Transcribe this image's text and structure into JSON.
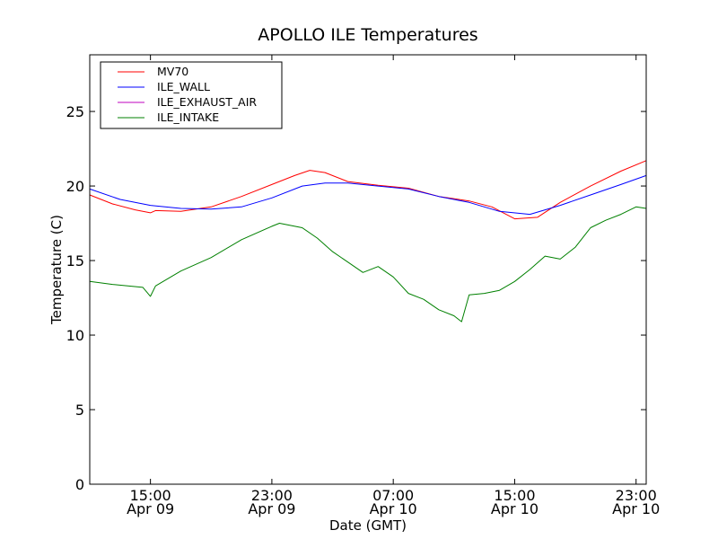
{
  "chart_data": {
    "type": "line",
    "title": "APOLLO ILE Temperatures",
    "xlabel": "Date (GMT)",
    "ylabel": "Temperature (C)",
    "ylim": [
      0,
      28.8
    ],
    "xlim": [
      "2014-04-09 11:00",
      "2014-04-10 23:40"
    ],
    "y_ticks": [
      0,
      5,
      10,
      15,
      20,
      25
    ],
    "x_ticks": [
      {
        "at": "2014-04-09 15:00",
        "time": "15:00",
        "date": "Apr 09"
      },
      {
        "at": "2014-04-09 23:00",
        "time": "23:00",
        "date": "Apr 09"
      },
      {
        "at": "2014-04-10 07:00",
        "time": "07:00",
        "date": "Apr 10"
      },
      {
        "at": "2014-04-10 15:00",
        "time": "15:00",
        "date": "Apr 10"
      },
      {
        "at": "2014-04-10 23:00",
        "time": "23:00",
        "date": "Apr 10"
      }
    ],
    "grid": false,
    "legend": "top-left",
    "series": [
      {
        "name": "MV70",
        "color": "#ff0000",
        "x": [
          "2014-04-09 11:00",
          "2014-04-09 12:30",
          "2014-04-09 14:00",
          "2014-04-09 15:00",
          "2014-04-09 15:20",
          "2014-04-09 17:00",
          "2014-04-09 19:00",
          "2014-04-09 21:00",
          "2014-04-09 23:00",
          "2014-04-10 00:30",
          "2014-04-10 01:30",
          "2014-04-10 02:30",
          "2014-04-10 04:00",
          "2014-04-10 06:00",
          "2014-04-10 08:00",
          "2014-04-10 10:00",
          "2014-04-10 12:00",
          "2014-04-10 13:30",
          "2014-04-10 15:00",
          "2014-04-10 16:30",
          "2014-04-10 18:00",
          "2014-04-10 20:00",
          "2014-04-10 22:00",
          "2014-04-10 23:40"
        ],
        "y": [
          19.4,
          18.8,
          18.4,
          18.2,
          18.35,
          18.3,
          18.6,
          19.3,
          20.1,
          20.7,
          21.05,
          20.9,
          20.3,
          20.05,
          19.85,
          19.3,
          19.0,
          18.6,
          17.8,
          17.9,
          18.9,
          20.0,
          21.0,
          21.7
        ]
      },
      {
        "name": "ILE_WALL",
        "color": "#0000ff",
        "x": [
          "2014-04-09 11:00",
          "2014-04-09 13:00",
          "2014-04-09 15:00",
          "2014-04-09 17:00",
          "2014-04-09 19:00",
          "2014-04-09 21:00",
          "2014-04-09 23:00",
          "2014-04-10 01:00",
          "2014-04-10 02:30",
          "2014-04-10 04:00",
          "2014-04-10 06:00",
          "2014-04-10 08:00",
          "2014-04-10 10:00",
          "2014-04-10 12:00",
          "2014-04-10 14:00",
          "2014-04-10 16:00",
          "2014-04-10 18:00",
          "2014-04-10 20:00",
          "2014-04-10 22:00",
          "2014-04-10 23:40"
        ],
        "y": [
          19.8,
          19.1,
          18.7,
          18.5,
          18.45,
          18.6,
          19.2,
          20.0,
          20.2,
          20.2,
          20.0,
          19.8,
          19.3,
          18.9,
          18.3,
          18.1,
          18.7,
          19.4,
          20.1,
          20.7
        ]
      },
      {
        "name": "ILE_EXHAUST_AIR",
        "color": "#bf00bf",
        "x": [],
        "y": []
      },
      {
        "name": "ILE_INTAKE",
        "color": "#008000",
        "x": [
          "2014-04-09 11:00",
          "2014-04-09 12:30",
          "2014-04-09 14:30",
          "2014-04-09 15:00",
          "2014-04-09 15:20",
          "2014-04-09 17:00",
          "2014-04-09 19:00",
          "2014-04-09 21:00",
          "2014-04-09 23:00",
          "2014-04-09 23:30",
          "2014-04-10 01:00",
          "2014-04-10 02:00",
          "2014-04-10 03:00",
          "2014-04-10 04:00",
          "2014-04-10 05:00",
          "2014-04-10 06:00",
          "2014-04-10 07:00",
          "2014-04-10 08:00",
          "2014-04-10 09:00",
          "2014-04-10 10:00",
          "2014-04-10 11:00",
          "2014-04-10 11:30",
          "2014-04-10 12:00",
          "2014-04-10 13:00",
          "2014-04-10 14:00",
          "2014-04-10 15:00",
          "2014-04-10 16:00",
          "2014-04-10 17:00",
          "2014-04-10 18:00",
          "2014-04-10 19:00",
          "2014-04-10 20:00",
          "2014-04-10 21:00",
          "2014-04-10 22:00",
          "2014-04-10 23:00",
          "2014-04-10 23:40"
        ],
        "y": [
          13.6,
          13.4,
          13.2,
          12.6,
          13.3,
          14.3,
          15.2,
          16.4,
          17.3,
          17.5,
          17.2,
          16.5,
          15.6,
          14.9,
          14.2,
          14.6,
          13.9,
          12.8,
          12.4,
          11.7,
          11.3,
          10.9,
          12.7,
          12.8,
          13.0,
          13.6,
          14.4,
          15.3,
          15.1,
          15.9,
          17.2,
          17.7,
          18.1,
          18.6,
          18.5
        ]
      }
    ]
  }
}
